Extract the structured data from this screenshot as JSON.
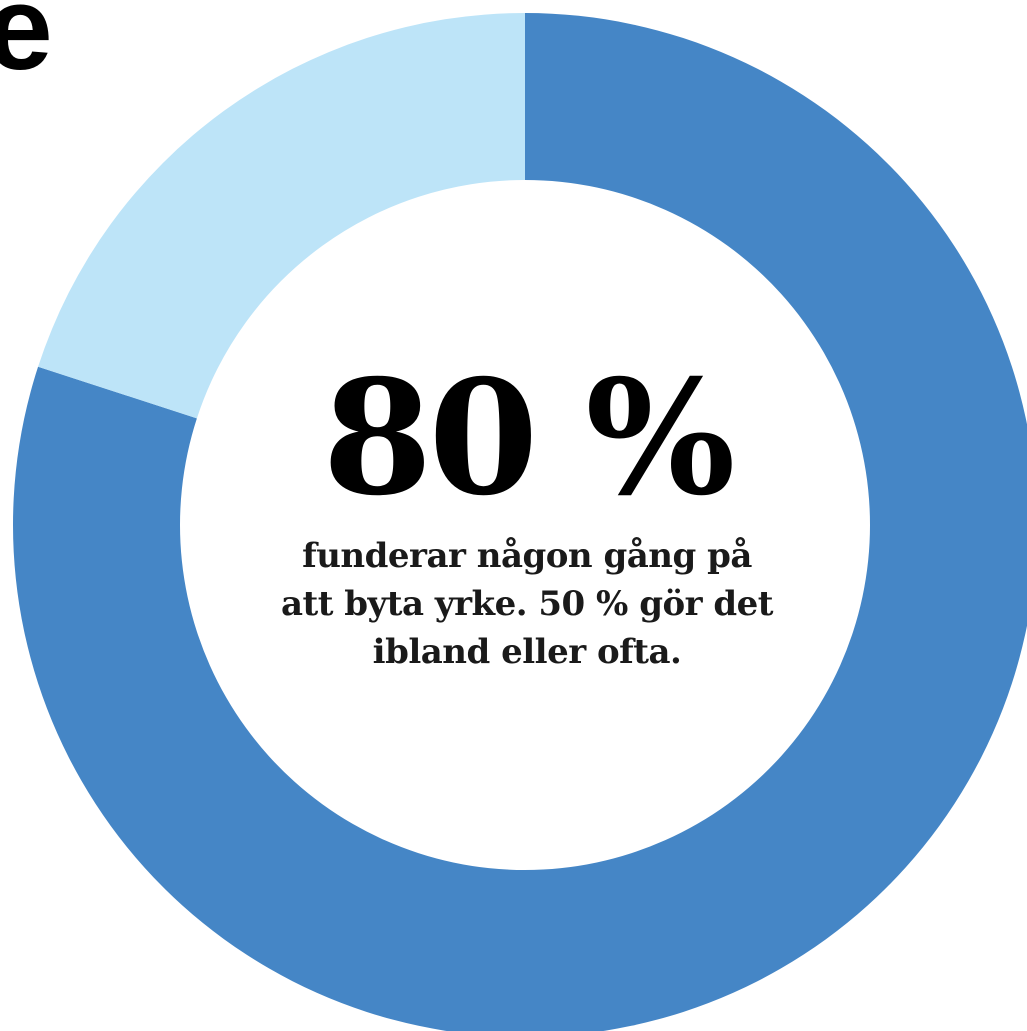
{
  "header": {
    "partial_letter": "e"
  },
  "colors": {
    "main_segment": "#4586c6",
    "remainder_segment": "#bde4f8",
    "background": "#ffffff"
  },
  "chart_data": {
    "type": "pie",
    "donut": true,
    "start_angle_deg": 0,
    "direction": "clockwise",
    "slices": [
      {
        "value": 80,
        "color": "#4586c6"
      },
      {
        "value": 20,
        "color": "#bde4f8"
      }
    ],
    "center_label": "80 %",
    "caption_lines": [
      "funderar någon gång på",
      "att byta yrke. 50 % gör det",
      "ibland eller ofta."
    ]
  }
}
